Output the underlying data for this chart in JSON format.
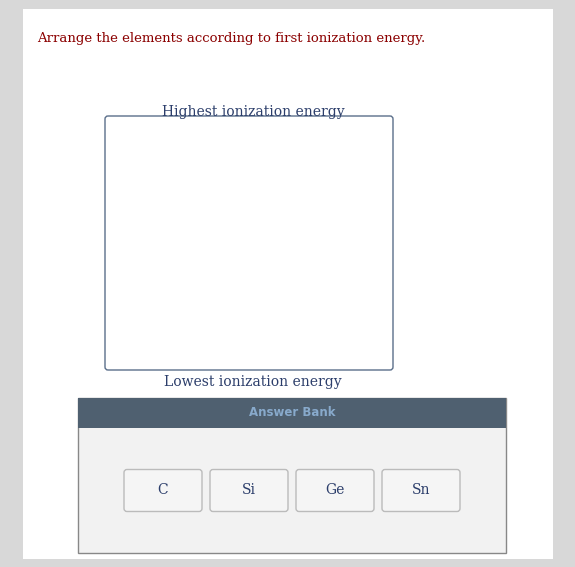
{
  "title": "Arrange the elements according to first ionization energy.",
  "title_color": "#8B0000",
  "title_fontsize": 9.5,
  "highest_label": "Highest ionization energy",
  "lowest_label": "Lowest ionization energy",
  "label_fontsize": 10,
  "label_color": "#2c3e6b",
  "answer_bank_label": "Answer Bank",
  "answer_bank_header_color": "#4f6070",
  "answer_bank_bg_color": "#f2f2f2",
  "elements": [
    "C",
    "Si",
    "Ge",
    "Sn"
  ],
  "element_button_color": "#f5f5f5",
  "element_button_border": "#bbbbbb",
  "element_fontsize": 10,
  "element_color": "#2c3e6b",
  "bg_color": "#d8d8d8",
  "panel_bg_color": "#ffffff",
  "answer_bank_label_color": "#88aacc",
  "answer_bank_label_fontsize": 8.5
}
